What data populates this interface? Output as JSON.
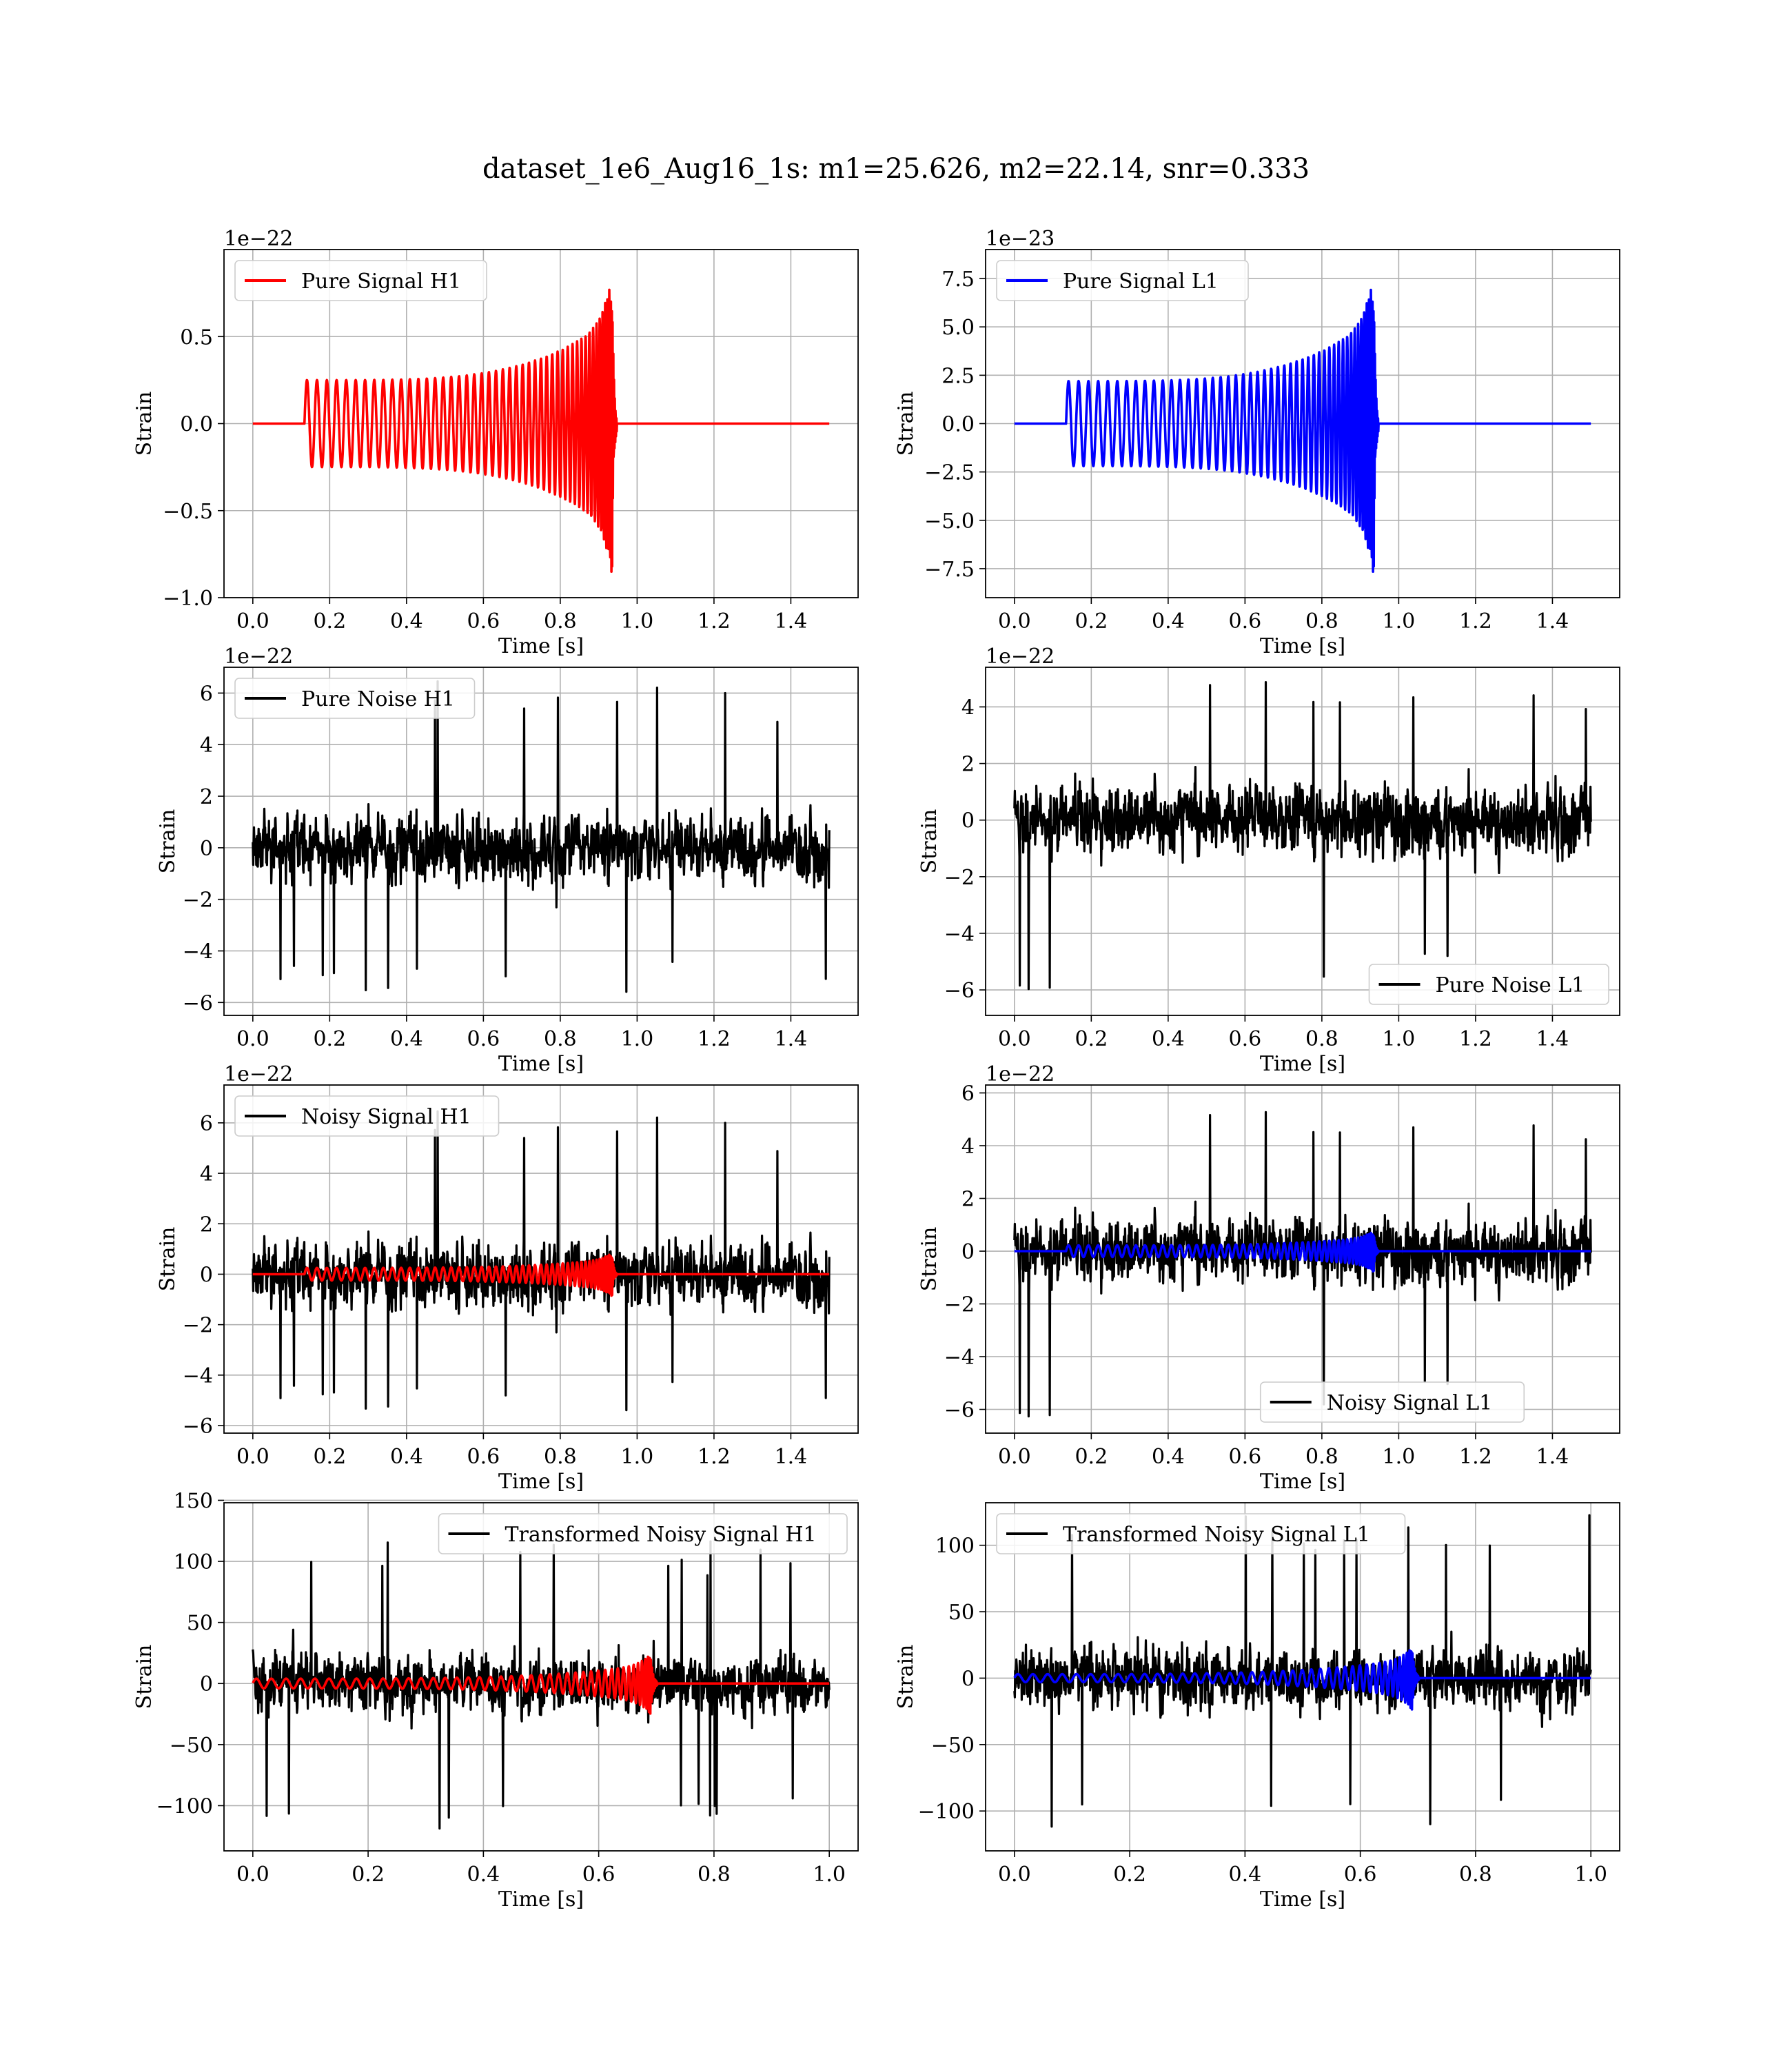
{
  "figure": {
    "title": "dataset_1e6_Aug16_1s: m1=25.626, m2=22.14, snr=0.333"
  },
  "colors": {
    "h1_signal": "#ff0000",
    "l1_signal": "#0000ff",
    "noise": "#000000",
    "grid": "#b0b0b0"
  },
  "chart_data": [
    {
      "type": "line",
      "xlabel": "Time [s]",
      "ylabel": "Strain",
      "offset_label": "1e−22",
      "xlim": [
        -0.075,
        1.575
      ],
      "ylim": [
        -1.0,
        1.0
      ],
      "xticks": [
        0.0,
        0.2,
        0.4,
        0.6,
        0.8,
        1.0,
        1.2,
        1.4
      ],
      "yticks": [
        -1.0,
        -0.5,
        0.0,
        0.5
      ],
      "grid": true,
      "legend_position": "upper-left",
      "series": [
        {
          "name": "Pure Signal H1",
          "color": "#ff0000",
          "kind": "chirp",
          "t_start": 0.135,
          "t_merge": 0.935,
          "t_end": 1.5,
          "amp_start": 0.25,
          "amp_peak": 0.9,
          "cycles": 40
        }
      ]
    },
    {
      "type": "line",
      "xlabel": "Time [s]",
      "ylabel": "Strain",
      "offset_label": "1e−23",
      "xlim": [
        -0.075,
        1.575
      ],
      "ylim": [
        -9.0,
        9.0
      ],
      "xticks": [
        0.0,
        0.2,
        0.4,
        0.6,
        0.8,
        1.0,
        1.2,
        1.4
      ],
      "yticks": [
        -7.5,
        -5.0,
        -2.5,
        0.0,
        2.5,
        5.0,
        7.5
      ],
      "grid": true,
      "legend_position": "upper-left",
      "series": [
        {
          "name": "Pure Signal L1",
          "color": "#0000ff",
          "kind": "chirp",
          "t_start": 0.135,
          "t_merge": 0.935,
          "t_end": 1.5,
          "amp_start": 2.2,
          "amp_peak": 8.1,
          "cycles": 40
        }
      ]
    },
    {
      "type": "line",
      "xlabel": "Time [s]",
      "ylabel": "Strain",
      "offset_label": "1e−22",
      "xlim": [
        -0.075,
        1.575
      ],
      "ylim": [
        -6.5,
        7.0
      ],
      "xticks": [
        0.0,
        0.2,
        0.4,
        0.6,
        0.8,
        1.0,
        1.2,
        1.4
      ],
      "yticks": [
        -6,
        -4,
        -2,
        0,
        2,
        4,
        6
      ],
      "grid": true,
      "legend_position": "upper-left",
      "series": [
        {
          "name": "Pure Noise H1",
          "color": "#000000",
          "kind": "noise",
          "t_start": 0.0,
          "t_end": 1.5,
          "sigma": 1.6,
          "max": 6.5,
          "min": -5.7,
          "seed": 11
        }
      ]
    },
    {
      "type": "line",
      "xlabel": "Time [s]",
      "ylabel": "Strain",
      "offset_label": "1e−22",
      "xlim": [
        -0.075,
        1.575
      ],
      "ylim": [
        -6.9,
        5.4
      ],
      "xticks": [
        0.0,
        0.2,
        0.4,
        0.6,
        0.8,
        1.0,
        1.2,
        1.4
      ],
      "yticks": [
        -6,
        -4,
        -2,
        0,
        2,
        4
      ],
      "grid": true,
      "legend_position": "lower-right",
      "series": [
        {
          "name": "Pure Noise L1",
          "color": "#000000",
          "kind": "noise",
          "t_start": 0.0,
          "t_end": 1.5,
          "sigma": 1.5,
          "max": 4.9,
          "min": -6.0,
          "seed": 23
        }
      ]
    },
    {
      "type": "line",
      "xlabel": "Time [s]",
      "ylabel": "Strain",
      "offset_label": "1e−22",
      "xlim": [
        -0.075,
        1.575
      ],
      "ylim": [
        -6.3,
        7.5
      ],
      "xticks": [
        0.0,
        0.2,
        0.4,
        0.6,
        0.8,
        1.0,
        1.2,
        1.4
      ],
      "yticks": [
        -6,
        -4,
        -2,
        0,
        2,
        4,
        6
      ],
      "grid": true,
      "legend_position": "upper-left",
      "series": [
        {
          "name": "Noisy Signal H1",
          "color": "#000000",
          "kind": "noise",
          "t_start": 0.0,
          "t_end": 1.5,
          "sigma": 1.6,
          "max": 6.5,
          "min": -5.5,
          "seed": 11
        },
        {
          "name": "",
          "color": "#ff0000",
          "kind": "chirp",
          "t_start": 0.135,
          "t_merge": 0.935,
          "t_end": 1.5,
          "amp_start": 0.25,
          "amp_peak": 0.9,
          "cycles": 40
        }
      ]
    },
    {
      "type": "line",
      "xlabel": "Time [s]",
      "ylabel": "Strain",
      "offset_label": "1e−22",
      "xlim": [
        -0.075,
        1.575
      ],
      "ylim": [
        -6.9,
        6.3
      ],
      "xticks": [
        0.0,
        0.2,
        0.4,
        0.6,
        0.8,
        1.0,
        1.2,
        1.4
      ],
      "yticks": [
        -6,
        -4,
        -2,
        0,
        2,
        4,
        6
      ],
      "grid": true,
      "legend_position": "lower-center",
      "series": [
        {
          "name": "Noisy Signal L1",
          "color": "#000000",
          "kind": "noise",
          "t_start": 0.0,
          "t_end": 1.5,
          "sigma": 1.5,
          "max": 5.3,
          "min": -6.3,
          "seed": 23
        },
        {
          "name": "",
          "color": "#0000ff",
          "kind": "chirp",
          "t_start": 0.135,
          "t_merge": 0.935,
          "t_end": 1.5,
          "amp_start": 0.22,
          "amp_peak": 0.81,
          "cycles": 40
        }
      ]
    },
    {
      "type": "line",
      "xlabel": "Time [s]",
      "ylabel": "Strain",
      "offset_label": "",
      "xlim": [
        -0.05,
        1.05
      ],
      "ylim": [
        -137,
        148
      ],
      "xticks": [
        0.0,
        0.2,
        0.4,
        0.6,
        0.8,
        1.0
      ],
      "yticks": [
        -100,
        -50,
        0,
        50,
        100,
        150
      ],
      "grid": true,
      "legend_position": "upper-right",
      "series": [
        {
          "name": "Transformed Noisy Signal H1",
          "color": "#000000",
          "kind": "noise",
          "t_start": 0.0,
          "t_end": 1.0,
          "sigma": 30,
          "max": 117,
          "min": -123,
          "seed": 37
        },
        {
          "name": "",
          "color": "#ff0000",
          "kind": "chirp",
          "t_start": 0.0,
          "t_merge": 0.69,
          "t_end": 1.0,
          "amp_start": 4,
          "amp_peak": 25,
          "cycles": 40
        }
      ]
    },
    {
      "type": "line",
      "xlabel": "Time [s]",
      "ylabel": "Strain",
      "offset_label": "",
      "xlim": [
        -0.05,
        1.05
      ],
      "ylim": [
        -130,
        132
      ],
      "xticks": [
        0.0,
        0.2,
        0.4,
        0.6,
        0.8,
        1.0
      ],
      "yticks": [
        -100,
        -50,
        0,
        50,
        100
      ],
      "grid": true,
      "legend_position": "upper-left",
      "series": [
        {
          "name": "Transformed Noisy Signal L1",
          "color": "#000000",
          "kind": "noise",
          "t_start": 0.0,
          "t_end": 1.0,
          "sigma": 28,
          "max": 123,
          "min": -120,
          "seed": 53
        },
        {
          "name": "",
          "color": "#0000ff",
          "kind": "chirp",
          "t_start": 0.0,
          "t_merge": 0.69,
          "t_end": 1.0,
          "amp_start": 3,
          "amp_peak": 24,
          "cycles": 40
        }
      ]
    }
  ]
}
